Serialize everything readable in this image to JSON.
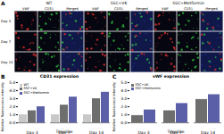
{
  "panel_a": {
    "panel_label": "A",
    "groups": [
      "WT",
      "SSC+VK",
      "SSC+Metformin"
    ],
    "channels": [
      "VWF",
      "CD31",
      "Merged"
    ],
    "rows": [
      "Day 3",
      "Day 7",
      "Day 14"
    ]
  },
  "chart_data": [
    {
      "panel_label": "B",
      "type": "bar",
      "title": "CD31 expression",
      "xlabel": "Timeline",
      "ylabel": "Relative fluorescence intensity",
      "categories": [
        "Day 3",
        "Day 7",
        "Day 14"
      ],
      "series": [
        {
          "name": "WT",
          "color": "#c8c8c8",
          "values": [
            1.0,
            1.0,
            1.0
          ]
        },
        {
          "name": "SSC+VK",
          "color": "#6e6e6e",
          "values": [
            1.5,
            2.2,
            3.0
          ]
        },
        {
          "name": "SSC+Metformin",
          "color": "#5a5fa8",
          "values": [
            2.0,
            3.2,
            3.8
          ]
        }
      ],
      "ylim": [
        0,
        5
      ],
      "yticks": [
        0,
        1,
        2,
        3,
        4,
        5
      ],
      "legend": "top-left"
    },
    {
      "panel_label": "C",
      "type": "bar",
      "title": "vWF expression",
      "xlabel": "Timeline",
      "ylabel": "Relative fluorescence intensity",
      "categories": [
        "Day 3",
        "Day 7",
        "Day 14"
      ],
      "series": [
        {
          "name": "SSC+VK",
          "color": "#6e6e6e",
          "values": [
            0.9,
            1.5,
            2.9
          ]
        },
        {
          "name": "SSC+Metformin",
          "color": "#5a5fa8",
          "values": [
            1.6,
            2.4,
            3.5
          ]
        }
      ],
      "ylim": [
        0,
        5
      ],
      "yticks": [
        0,
        1,
        2,
        3,
        4,
        5
      ],
      "legend": "top-left"
    }
  ]
}
